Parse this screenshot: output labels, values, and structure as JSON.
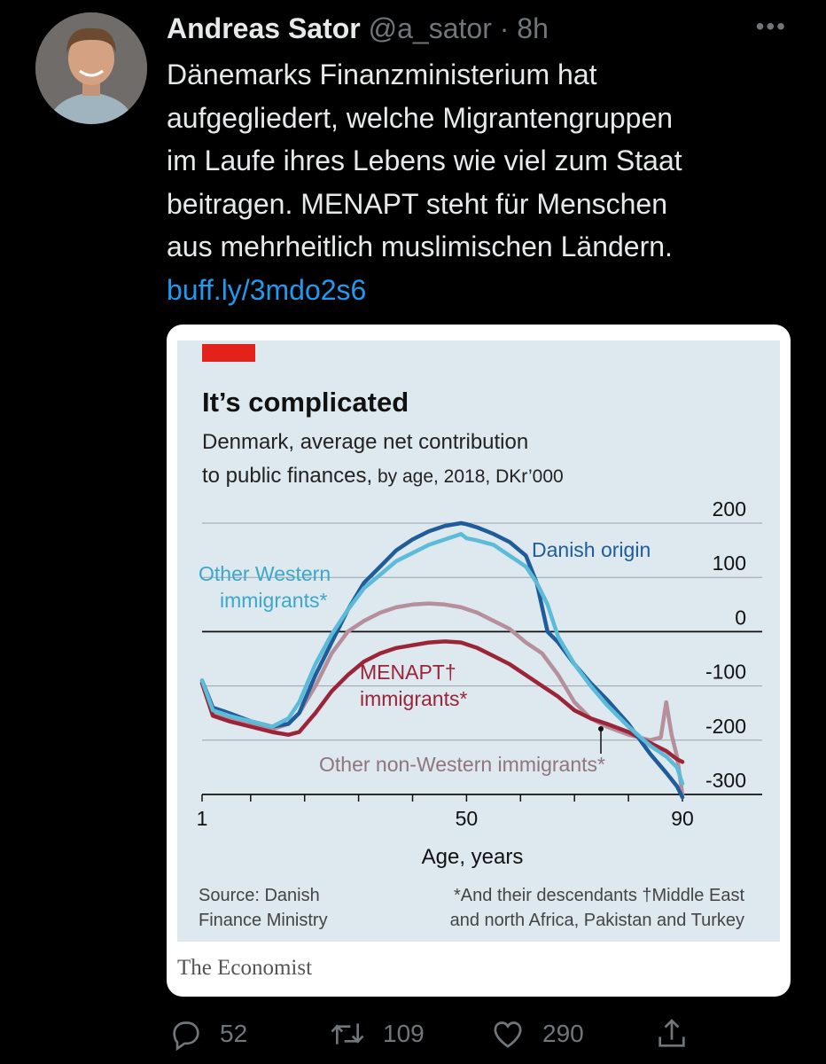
{
  "tweet": {
    "author_name": "Andreas Sator",
    "handle": "@a_sator",
    "separator": "·",
    "time": "8h",
    "more_icon": "more-horizontal-icon",
    "text_lines": [
      "Dänemarks Finanzministerium hat",
      "aufgegliedert, welche Migrantengruppen",
      "im Laufe ihres Lebens wie viel zum Staat",
      "beitragen. MENAPT steht für Menschen",
      "aus mehrheitlich muslimischen Ländern."
    ],
    "link": "buff.ly/3mdo2s6"
  },
  "card": {
    "publisher": "The Economist"
  },
  "chart_data": {
    "type": "line",
    "title": "It’s complicated",
    "subtitle_line1": "Denmark, average net contribution",
    "subtitle_line2_bold": "to public finances,",
    "subtitle_line2_rest": " by age, 2018, DKr’000",
    "xlabel": "Age, years",
    "ylabel": "",
    "x_ticks": [
      "1",
      "50",
      "90"
    ],
    "y_ticks": [
      "200",
      "100",
      "0",
      "-100",
      "-200",
      "-300"
    ],
    "xlim": [
      1,
      90
    ],
    "ylim": [
      -300,
      200
    ],
    "grid": true,
    "source_line1": "Source: Danish",
    "source_line2": "Finance Ministry",
    "note_line1": "*And their descendants  †Middle East",
    "note_line2": "and north Africa, Pakistan and Turkey",
    "colors": {
      "accent_bar": "#e3231b",
      "danish_origin": "#1f5c99",
      "other_western": "#5bbbd8",
      "other_non_western": "#b58f9b",
      "menapt": "#9b2438",
      "background": "#dde8ef"
    },
    "series": [
      {
        "key": "danish_origin",
        "name": "Danish origin",
        "x": [
          1,
          3,
          6,
          10,
          14,
          17,
          19,
          22,
          25,
          28,
          31,
          34,
          37,
          40,
          43,
          46,
          49,
          50,
          52,
          55,
          58,
          61,
          63,
          65,
          67,
          70,
          73,
          76,
          80,
          84,
          87,
          89,
          90
        ],
        "y": [
          -90,
          -140,
          -150,
          -165,
          -175,
          -170,
          -150,
          -80,
          -20,
          40,
          90,
          120,
          150,
          170,
          185,
          195,
          200,
          198,
          192,
          180,
          165,
          140,
          90,
          0,
          -20,
          -60,
          -95,
          -125,
          -170,
          -225,
          -260,
          -285,
          -305
        ]
      },
      {
        "key": "other_western",
        "name": "Other Western immigrants*",
        "x": [
          1,
          3,
          6,
          10,
          14,
          17,
          19,
          22,
          25,
          28,
          31,
          34,
          37,
          40,
          43,
          46,
          49,
          50,
          52,
          55,
          58,
          61,
          63,
          65,
          67,
          70,
          73,
          76,
          80,
          84,
          87,
          89,
          90
        ],
        "y": [
          -90,
          -145,
          -155,
          -165,
          -175,
          -160,
          -130,
          -60,
          -5,
          40,
          80,
          105,
          130,
          145,
          160,
          170,
          180,
          172,
          168,
          160,
          140,
          120,
          90,
          50,
          -10,
          -60,
          -100,
          -135,
          -175,
          -210,
          -230,
          -250,
          -280
        ]
      },
      {
        "key": "other_non_western",
        "name": "Other non-Western immigrants*",
        "x": [
          1,
          3,
          6,
          10,
          14,
          17,
          19,
          22,
          25,
          28,
          31,
          34,
          37,
          40,
          43,
          46,
          49,
          52,
          55,
          58,
          61,
          64,
          67,
          70,
          73,
          76,
          80,
          84,
          86,
          87,
          88,
          89,
          90
        ],
        "y": [
          -95,
          -150,
          -160,
          -170,
          -180,
          -170,
          -150,
          -100,
          -40,
          0,
          20,
          35,
          45,
          50,
          52,
          50,
          45,
          35,
          20,
          5,
          -20,
          -40,
          -80,
          -130,
          -160,
          -175,
          -190,
          -200,
          -195,
          -130,
          -190,
          -230,
          -300
        ]
      },
      {
        "key": "menapt",
        "name": "MENAPT† immigrants*",
        "x": [
          1,
          3,
          6,
          10,
          14,
          17,
          19,
          22,
          25,
          28,
          31,
          34,
          37,
          40,
          43,
          46,
          49,
          52,
          55,
          58,
          61,
          64,
          67,
          70,
          73,
          76,
          80,
          84,
          87,
          89,
          90
        ],
        "y": [
          -95,
          -155,
          -165,
          -175,
          -185,
          -190,
          -185,
          -150,
          -110,
          -80,
          -55,
          -40,
          -30,
          -25,
          -20,
          -18,
          -20,
          -30,
          -45,
          -60,
          -80,
          -100,
          -120,
          -145,
          -160,
          -170,
          -185,
          -205,
          -220,
          -235,
          -240
        ]
      }
    ],
    "labels": {
      "danish_origin": "Danish origin",
      "other_western_line1": "Other Western",
      "other_western_line2": "immigrants*",
      "menapt_line1": "MENAPT†",
      "menapt_line2": "immigrants*",
      "other_non_western": "Other non-Western immigrants*"
    }
  },
  "actions": {
    "reply_icon": "reply-icon",
    "reply_count": "52",
    "retweet_icon": "retweet-icon",
    "retweet_count": "109",
    "like_icon": "heart-icon",
    "like_count": "290",
    "share_icon": "share-icon"
  }
}
